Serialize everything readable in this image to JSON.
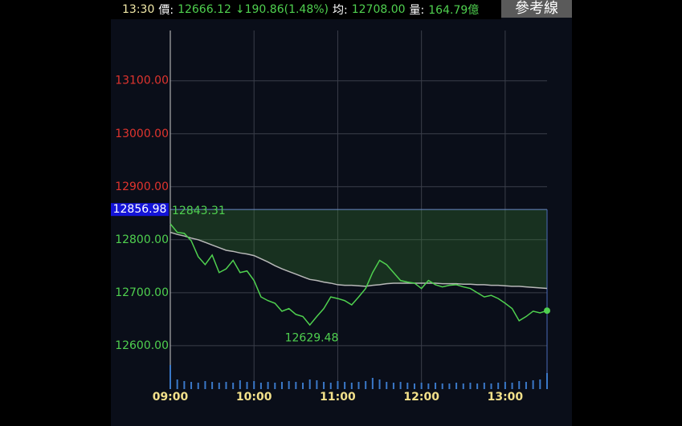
{
  "header": {
    "time": "13:30",
    "price_label": "價:",
    "price": "12666.12",
    "change": "↓190.86(1.48%)",
    "avg_label": "均:",
    "avg": "12708.00",
    "volume_label": "量:",
    "volume": "164.79億",
    "button": "參考線"
  },
  "chart_data": {
    "type": "line",
    "categories": [
      "09:00",
      null,
      null,
      null,
      null,
      null,
      null,
      null,
      null,
      null,
      null,
      null,
      "10:00",
      null,
      null,
      null,
      null,
      null,
      null,
      null,
      null,
      null,
      null,
      null,
      "11:00",
      null,
      null,
      null,
      null,
      null,
      null,
      null,
      null,
      null,
      null,
      null,
      "12:00",
      null,
      null,
      null,
      null,
      null,
      null,
      null,
      null,
      null,
      null,
      null,
      "13:00",
      null,
      null,
      null,
      null,
      null,
      null
    ],
    "series": [
      {
        "name": "price",
        "color": "#4fd04f",
        "values": [
          12830,
          12814,
          12812,
          12798,
          12768,
          12753,
          12771,
          12738,
          12745,
          12761,
          12738,
          12741,
          12723,
          12692,
          12685,
          12680,
          12665,
          12670,
          12659,
          12655,
          12639,
          12655,
          12670,
          12692,
          12689,
          12685,
          12677,
          12692,
          12708,
          12738,
          12761,
          12753,
          12738,
          12723,
          12720,
          12718,
          12708,
          12723,
          12715,
          12711,
          12714,
          12715,
          12711,
          12708,
          12700,
          12692,
          12695,
          12689,
          12680,
          12670,
          12647,
          12655,
          12665,
          12662,
          12666.12
        ]
      },
      {
        "name": "average",
        "color": "#b8b8b8",
        "values": [
          12814,
          12810,
          12807,
          12803,
          12800,
          12795,
          12790,
          12785,
          12780,
          12778,
          12775,
          12773,
          12770,
          12764,
          12758,
          12751,
          12745,
          12740,
          12735,
          12730,
          12725,
          12723,
          12720,
          12718,
          12715,
          12714,
          12714,
          12713,
          12712,
          12714,
          12715,
          12717,
          12718,
          12718,
          12718,
          12718,
          12718,
          12718,
          12718,
          12717,
          12717,
          12717,
          12716,
          12716,
          12715,
          12715,
          12714,
          12714,
          12713,
          12712,
          12712,
          12711,
          12710,
          12709,
          12708
        ]
      }
    ],
    "volume": {
      "color": "#3a78c8",
      "values": [
        30,
        12,
        10,
        9,
        8,
        10,
        9,
        8,
        9,
        8,
        11,
        9,
        10,
        8,
        9,
        8,
        9,
        10,
        9,
        8,
        12,
        11,
        9,
        8,
        10,
        9,
        8,
        9,
        10,
        14,
        12,
        9,
        8,
        9,
        8,
        7,
        8,
        7,
        8,
        7,
        7,
        8,
        7,
        8,
        7,
        8,
        7,
        8,
        9,
        8,
        10,
        9,
        11,
        12,
        20
      ]
    },
    "ylim": [
      12518,
      13195
    ],
    "yticks": [
      {
        "value": 13100,
        "label": "13100.00"
      },
      {
        "value": 13000,
        "label": "13000.00"
      },
      {
        "value": 12900,
        "label": "12900.00"
      },
      {
        "value": 12800,
        "label": "12800.00"
      },
      {
        "value": 12700,
        "label": "12700.00"
      },
      {
        "value": 12600,
        "label": "12600.00"
      }
    ],
    "reference": 12856.98,
    "open": 12843.31,
    "low": 12629.48,
    "up_color": "#e0342e",
    "down_color": "#4fd04f",
    "grid": true
  }
}
